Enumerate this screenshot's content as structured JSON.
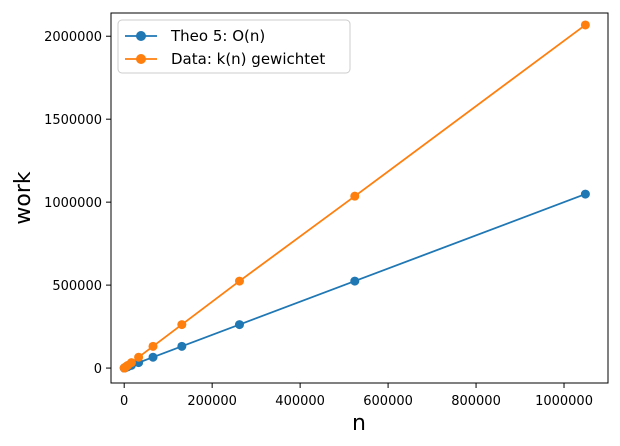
{
  "chart_data": {
    "type": "line",
    "title": "",
    "xlabel": "n",
    "ylabel": "work",
    "xlim": [
      -30000,
      1100000
    ],
    "ylim": [
      -90000,
      2140000
    ],
    "xticks": [
      0,
      200000,
      400000,
      600000,
      800000,
      1000000
    ],
    "yticks": [
      0,
      500000,
      1000000,
      1500000,
      2000000
    ],
    "xtick_labels": [
      "0",
      "200000",
      "400000",
      "600000",
      "800000",
      "1000000"
    ],
    "ytick_labels": [
      "0",
      "500000",
      "1000000",
      "1500000",
      "2000000"
    ],
    "grid": false,
    "legend_placement": "top-left",
    "x": [
      128,
      256,
      512,
      1024,
      2048,
      4096,
      8192,
      16384,
      32768,
      65536,
      131072,
      262144,
      524288,
      1048576
    ],
    "series": [
      {
        "name": "Theo 5: O(n)",
        "color": "#1f77b4",
        "values": [
          128,
          256,
          512,
          1024,
          2048,
          4096,
          8192,
          16384,
          32768,
          65536,
          131072,
          262144,
          524288,
          1048576
        ]
      },
      {
        "name": "Data: k(n) gewichtet",
        "color": "#ff7f0e",
        "values": [
          256,
          512,
          1024,
          2048,
          4096,
          8192,
          16384,
          32768,
          65536,
          131072,
          262144,
          524288,
          1036000,
          2068000
        ]
      }
    ]
  }
}
